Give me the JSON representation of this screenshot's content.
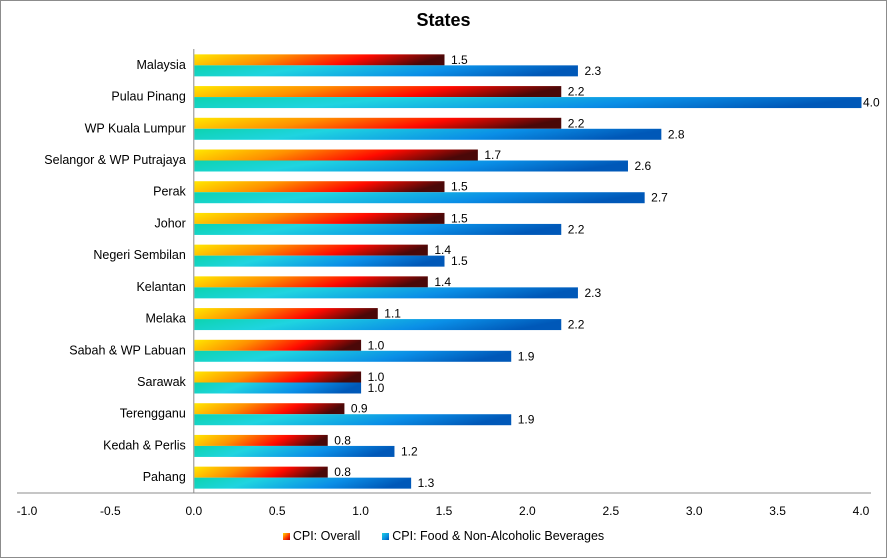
{
  "chart_data": {
    "type": "bar",
    "orientation": "horizontal",
    "title": "States",
    "xlabel": "",
    "ylabel": "",
    "xlim": [
      -1.0,
      4.0
    ],
    "xticks": [
      "-1.0",
      "-0.5",
      "0.0",
      "0.5",
      "1.0",
      "1.5",
      "2.0",
      "2.5",
      "3.0",
      "3.5",
      "4.0"
    ],
    "grid": false,
    "legend_position": "bottom",
    "categories": [
      "Malaysia",
      "Pulau Pinang",
      "WP Kuala Lumpur",
      "Selangor & WP Putrajaya",
      "Perak",
      "Johor",
      "Negeri Sembilan",
      "Kelantan",
      "Melaka",
      "Sabah & WP Labuan",
      "Sarawak",
      "Terengganu",
      "Kedah & Perlis",
      "Pahang"
    ],
    "series": [
      {
        "name": "CPI: Overall",
        "values": [
          1.5,
          2.2,
          2.2,
          1.7,
          1.5,
          1.5,
          1.4,
          1.4,
          1.1,
          1.0,
          1.0,
          0.9,
          0.8,
          0.8
        ],
        "labels": [
          "1.5",
          "2.2",
          "2.2",
          "1.7",
          "1.5",
          "1.5",
          "1.4",
          "1.4",
          "1.1",
          "1.0",
          "1.0",
          "0.9",
          "0.8",
          "0.8"
        ]
      },
      {
        "name": "CPI: Food & Non-Alcoholic Beverages",
        "values": [
          2.3,
          4.0,
          2.8,
          2.6,
          2.7,
          2.2,
          1.5,
          2.3,
          2.2,
          1.9,
          1.0,
          1.9,
          1.2,
          1.3
        ],
        "labels": [
          "2.3",
          "4.0",
          "2.8",
          "2.6",
          "2.7",
          "2.2",
          "1.5",
          "2.3",
          "2.2",
          "1.9",
          "1.0",
          "1.9",
          "1.2",
          "1.3"
        ]
      }
    ]
  },
  "legend": {
    "items": [
      {
        "label": "CPI: Overall"
      },
      {
        "label": "CPI: Food & Non-Alcoholic Beverages"
      }
    ]
  }
}
